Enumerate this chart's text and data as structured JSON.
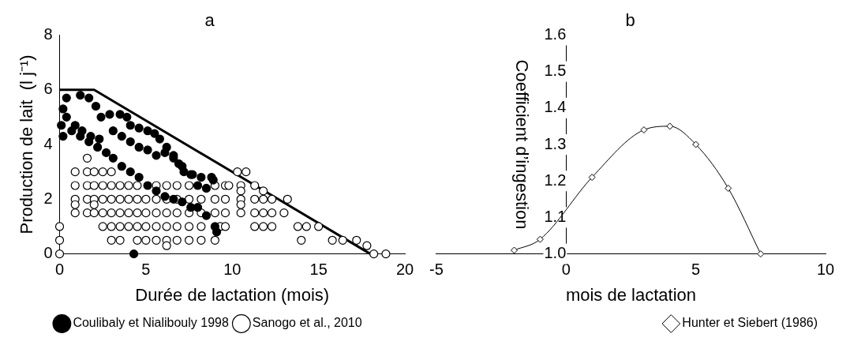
{
  "chart_data": [
    {
      "type": "scatter",
      "title": "a",
      "xlabel": "Durée de lactation (mois)",
      "ylabel": "Production de lait  (l j⁻¹)",
      "xlim": [
        0,
        20
      ],
      "xticks": [
        0,
        5,
        10,
        15,
        20
      ],
      "ylim": [
        0,
        8
      ],
      "yticks": [
        0,
        2,
        4,
        6,
        8
      ],
      "grid": false,
      "legend": "bottom",
      "marker": "circle",
      "series": [
        {
          "name": "Coulibaly et Nialibouly 1998",
          "color": "#000000",
          "x": [
            0.4,
            1.2,
            1.7,
            2.1,
            2.4,
            2.9,
            3.5,
            3.9,
            4.1,
            4.6,
            5.1,
            5.5,
            5.8,
            6.2,
            6.6,
            6.9,
            7.2,
            7.7,
            8.2,
            8.9,
            0.2,
            0.4,
            0.9,
            1.3,
            1.8,
            2.3,
            3.1,
            3.6,
            4.1,
            4.6,
            5.1,
            5.6,
            6.1,
            6.6,
            7.1,
            7.6,
            8.0,
            8.5,
            8.8,
            0.1,
            0.2,
            0.7,
            1.2,
            1.7,
            2.2,
            2.7,
            3.1,
            3.6,
            4.1,
            4.6,
            5.1,
            5.6,
            6.1,
            6.6,
            7.1,
            7.6,
            8.0,
            8.5,
            9.0,
            9.1,
            4.3
          ],
          "values": [
            5.7,
            5.8,
            5.7,
            5.4,
            5.0,
            5.1,
            5.1,
            5.0,
            4.7,
            4.6,
            4.5,
            4.4,
            4.2,
            3.9,
            3.6,
            3.3,
            3.0,
            2.9,
            2.8,
            2.7,
            5.3,
            5.0,
            4.7,
            4.5,
            4.3,
            4.2,
            4.5,
            4.3,
            4.1,
            3.9,
            3.8,
            3.6,
            3.7,
            3.5,
            3.2,
            2.9,
            2.5,
            2.4,
            2.8,
            4.7,
            4.3,
            4.5,
            4.3,
            4.1,
            3.9,
            3.7,
            3.5,
            3.2,
            3.0,
            2.8,
            2.5,
            2.3,
            2.1,
            2.0,
            1.9,
            1.7,
            1.7,
            1.4,
            1.0,
            0.8,
            0
          ]
        },
        {
          "name": "Sanogo et al., 2010",
          "color": "#ffffff",
          "x": [
            0,
            0,
            0,
            0.9,
            0.9,
            0.9,
            0.9,
            0.9,
            1.6,
            1.6,
            1.6,
            1.6,
            1.6,
            2.0,
            2.0,
            2.0,
            2.0,
            2.0,
            2.5,
            2.5,
            2.5,
            2.5,
            2.5,
            3.0,
            3.0,
            3.0,
            3.0,
            3.0,
            3.0,
            3.5,
            3.5,
            3.5,
            3.5,
            3.5,
            4.0,
            4.0,
            4.0,
            4.0,
            4.5,
            4.5,
            4.5,
            4.5,
            4.5,
            5.0,
            5.0,
            5.0,
            5.0,
            5.6,
            5.6,
            5.6,
            5.6,
            5.6,
            6.2,
            6.2,
            6.2,
            6.2,
            6.2,
            6.2,
            6.8,
            6.8,
            6.8,
            6.8,
            6.8,
            7.5,
            7.5,
            7.5,
            7.5,
            7.5,
            8.2,
            8.2,
            8.2,
            8.2,
            9.0,
            9.0,
            9.0,
            9.3,
            9.0,
            9.6,
            9.6,
            9.6,
            9.6,
            10.3,
            10.8,
            9.8,
            10.5,
            10.5,
            10.5,
            10.5,
            10.5,
            11.3,
            11.3,
            11.3,
            11.3,
            11.8,
            11.8,
            11.8,
            11.8,
            12.3,
            12.3,
            12.3,
            13.2,
            13.0,
            13.8,
            14.3,
            14.0,
            15.0,
            15.8,
            16.4,
            17.2,
            17.8,
            18.2,
            18.9
          ],
          "values": [
            0,
            0.5,
            1,
            3,
            2.5,
            2,
            1.8,
            1.5,
            3.5,
            3,
            2.5,
            2,
            1.5,
            3,
            2.5,
            2,
            1.8,
            1.5,
            3,
            2.5,
            2,
            1.5,
            1,
            3,
            2.5,
            2,
            1.5,
            1,
            0.5,
            2.5,
            2,
            1.5,
            1,
            0.5,
            2.5,
            2,
            1.5,
            1,
            2.5,
            2,
            1.5,
            1,
            0.5,
            2,
            1.5,
            1,
            0.5,
            2.5,
            2,
            1.5,
            1,
            0.5,
            2.5,
            2,
            1.5,
            1,
            0.5,
            0.3,
            2.5,
            2,
            1.5,
            1,
            0.5,
            2.5,
            2,
            1.5,
            1,
            0.5,
            2,
            1.5,
            1,
            0.5,
            2.5,
            2,
            1.5,
            1,
            0.5,
            2.5,
            2,
            1.5,
            1,
            3,
            3,
            2.5,
            2.5,
            2.3,
            2,
            1.8,
            1.5,
            2.5,
            2,
            1.5,
            1,
            2.3,
            2,
            1.5,
            1,
            2,
            1.5,
            1,
            2,
            1.5,
            1,
            1,
            0.5,
            1,
            0.5,
            0.5,
            0.5,
            0.3,
            0,
            0
          ]
        },
        {
          "type": "line",
          "color": "#000000",
          "marker": "none",
          "x": [
            0,
            2,
            18
          ],
          "values": [
            6,
            6,
            0
          ]
        }
      ]
    },
    {
      "type": "line",
      "title": "b",
      "xlabel": "mois de lactation",
      "ylabel": "Coefficient d’ingestion",
      "xlim": [
        -5,
        10
      ],
      "xticks": [
        -5,
        0,
        5,
        10
      ],
      "ylim": [
        1.0,
        1.6
      ],
      "yticks": [
        {
          "value": 1.0,
          "label": "1.0"
        },
        1.1,
        1.2,
        1.3,
        1.4,
        1.5,
        1.6
      ],
      "grid": false,
      "legend": "bottom right",
      "marker": "diamond",
      "series": [
        {
          "name": "Hunter et Siebert (1986)",
          "color": "#000000",
          "x": [
            -2.0,
            -1.0,
            1.0,
            3.0,
            4.0,
            5.0,
            6.25,
            7.5
          ],
          "values": [
            1.01,
            1.04,
            1.21,
            1.34,
            1.35,
            1.3,
            1.18,
            1.0
          ]
        }
      ]
    }
  ]
}
